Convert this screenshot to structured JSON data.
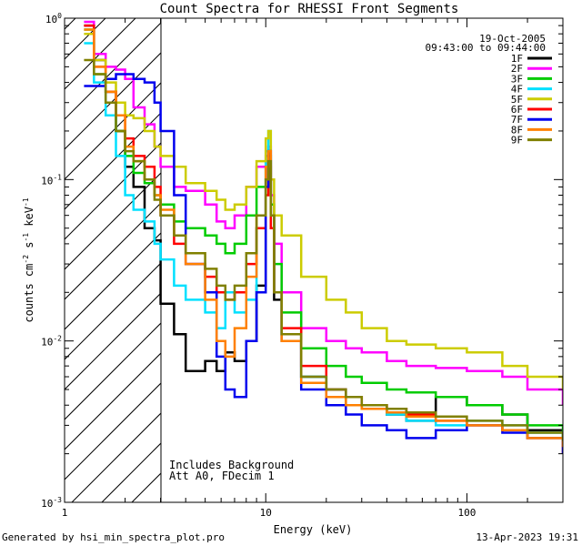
{
  "chart_data": {
    "type": "line",
    "title": "Count Spectra for RHESSI Front Segments",
    "xlabel": "Energy (keV)",
    "ylabel": "counts cm^-2 s^-1 keV^-1",
    "ylabel_parts": {
      "a": "counts cm",
      "a_sup": "-2",
      "b": " s",
      "b_sup": "-1",
      "c": " keV",
      "c_sup": "-1"
    },
    "xscale": "log",
    "yscale": "log",
    "xlim": [
      1.0,
      300.0
    ],
    "ylim": [
      0.001,
      1.0
    ],
    "xtick_labels": [
      {
        "v": 1,
        "label": "1"
      },
      {
        "v": 10,
        "label": "10"
      },
      {
        "v": 100,
        "label": "100"
      }
    ],
    "ytick_labels": [
      {
        "v": 1,
        "m": "10",
        "e": "0"
      },
      {
        "v": 0.1,
        "m": "10",
        "e": "-1"
      },
      {
        "v": 0.01,
        "m": "10",
        "e": "-2"
      },
      {
        "v": 0.001,
        "m": "10",
        "e": "-3"
      }
    ],
    "date_label": "19-Oct-2005",
    "time_label": "09:43:00 to 09:44:00",
    "annotations": [
      "Includes Background",
      "Att A0, FDecim 1"
    ],
    "shaded_region": {
      "x_max": 3.0,
      "pattern": "diagonal hatch"
    },
    "series": [
      {
        "name": "1F",
        "color": "#000000",
        "x": [
          1.25,
          1.4,
          1.6,
          1.8,
          2.0,
          2.2,
          2.5,
          2.8,
          3.0,
          3.5,
          4.0,
          5.0,
          5.7,
          6.3,
          7.0,
          8.0,
          9.0,
          10.0,
          10.3,
          10.6,
          11.0,
          12.0,
          15,
          20,
          25,
          30,
          40,
          50,
          70,
          100,
          150,
          200,
          300
        ],
        "y": [
          0.9,
          0.55,
          0.35,
          0.2,
          0.12,
          0.09,
          0.05,
          0.042,
          0.017,
          0.011,
          0.0065,
          0.0075,
          0.0065,
          0.0085,
          0.0075,
          0.01,
          0.022,
          0.1,
          0.13,
          0.06,
          0.018,
          0.011,
          0.006,
          0.005,
          0.004,
          0.0038,
          0.0035,
          0.0032,
          0.0045,
          0.004,
          0.0035,
          0.0028,
          0.0022
        ]
      },
      {
        "name": "2F",
        "color": "#ff00ff",
        "x": [
          1.25,
          1.4,
          1.6,
          1.8,
          2.0,
          2.2,
          2.5,
          2.8,
          3.0,
          3.5,
          4.0,
          5.0,
          5.7,
          6.3,
          7.0,
          8.0,
          9.0,
          10.0,
          10.3,
          10.6,
          11.0,
          12.0,
          15,
          20,
          25,
          30,
          40,
          50,
          70,
          100,
          150,
          200,
          300
        ],
        "y": [
          0.95,
          0.6,
          0.5,
          0.48,
          0.42,
          0.28,
          0.22,
          0.16,
          0.12,
          0.09,
          0.085,
          0.07,
          0.055,
          0.05,
          0.06,
          0.09,
          0.12,
          0.14,
          0.16,
          0.08,
          0.04,
          0.02,
          0.012,
          0.01,
          0.009,
          0.0085,
          0.0075,
          0.007,
          0.0068,
          0.0065,
          0.006,
          0.005,
          0.004
        ]
      },
      {
        "name": "3F",
        "color": "#00cc00",
        "x": [
          1.25,
          1.4,
          1.6,
          1.8,
          2.0,
          2.2,
          2.5,
          2.8,
          3.0,
          3.5,
          4.0,
          5.0,
          5.7,
          6.3,
          7.0,
          8.0,
          9.0,
          10.0,
          10.3,
          10.6,
          11.0,
          12.0,
          15,
          20,
          25,
          30,
          40,
          50,
          70,
          100,
          150,
          200,
          300
        ],
        "y": [
          0.85,
          0.45,
          0.3,
          0.2,
          0.14,
          0.11,
          0.095,
          0.08,
          0.07,
          0.055,
          0.05,
          0.045,
          0.04,
          0.035,
          0.04,
          0.06,
          0.09,
          0.12,
          0.14,
          0.07,
          0.03,
          0.015,
          0.009,
          0.007,
          0.006,
          0.0055,
          0.005,
          0.0048,
          0.0045,
          0.004,
          0.0035,
          0.003,
          0.0025
        ]
      },
      {
        "name": "4F",
        "color": "#00e0ff",
        "x": [
          1.25,
          1.4,
          1.6,
          1.8,
          2.0,
          2.2,
          2.5,
          2.8,
          3.0,
          3.5,
          4.0,
          5.0,
          5.7,
          6.3,
          7.0,
          8.0,
          9.0,
          10.0,
          10.3,
          10.6,
          11.0,
          12.0,
          15,
          20,
          25,
          30,
          40,
          50,
          70,
          100,
          150,
          200,
          300
        ],
        "y": [
          0.7,
          0.4,
          0.25,
          0.14,
          0.08,
          0.065,
          0.055,
          0.04,
          0.032,
          0.022,
          0.018,
          0.015,
          0.012,
          0.02,
          0.015,
          0.018,
          0.05,
          0.15,
          0.2,
          0.06,
          0.02,
          0.01,
          0.006,
          0.005,
          0.004,
          0.0038,
          0.0035,
          0.0032,
          0.003,
          0.0032,
          0.003,
          0.0027,
          0.0024
        ]
      },
      {
        "name": "5F",
        "color": "#cccc00",
        "x": [
          1.25,
          1.4,
          1.6,
          1.8,
          2.0,
          2.2,
          2.5,
          2.8,
          3.0,
          3.5,
          4.0,
          5.0,
          5.7,
          6.3,
          7.0,
          8.0,
          9.0,
          10.0,
          10.3,
          10.6,
          11.0,
          12.0,
          15,
          20,
          25,
          30,
          40,
          50,
          70,
          100,
          150,
          200,
          300
        ],
        "y": [
          0.8,
          0.55,
          0.4,
          0.3,
          0.25,
          0.24,
          0.2,
          0.16,
          0.14,
          0.12,
          0.095,
          0.085,
          0.075,
          0.065,
          0.07,
          0.09,
          0.13,
          0.18,
          0.2,
          0.1,
          0.06,
          0.045,
          0.025,
          0.018,
          0.015,
          0.012,
          0.01,
          0.0095,
          0.009,
          0.0085,
          0.007,
          0.006,
          0.005
        ]
      },
      {
        "name": "6F",
        "color": "#ff0000",
        "x": [
          1.25,
          1.4,
          1.6,
          1.8,
          2.0,
          2.2,
          2.5,
          2.8,
          3.0,
          3.5,
          4.0,
          5.0,
          5.7,
          6.3,
          7.0,
          8.0,
          9.0,
          10.0,
          10.3,
          10.6,
          11.0,
          12.0,
          15,
          20,
          25,
          30,
          40,
          50,
          70,
          100,
          150,
          200,
          300
        ],
        "y": [
          0.9,
          0.5,
          0.35,
          0.25,
          0.18,
          0.14,
          0.12,
          0.09,
          0.06,
          0.04,
          0.03,
          0.025,
          0.02,
          0.018,
          0.02,
          0.03,
          0.05,
          0.08,
          0.12,
          0.05,
          0.02,
          0.012,
          0.007,
          0.005,
          0.0045,
          0.004,
          0.0038,
          0.0035,
          0.0032,
          0.003,
          0.0028,
          0.0025,
          0.002
        ]
      },
      {
        "name": "7F",
        "color": "#0000ee",
        "x": [
          1.25,
          1.4,
          1.6,
          1.8,
          2.0,
          2.2,
          2.5,
          2.8,
          3.0,
          3.5,
          4.0,
          5.0,
          5.7,
          6.3,
          7.0,
          8.0,
          9.0,
          10.0,
          10.3,
          10.6,
          11.0,
          12.0,
          15,
          20,
          25,
          30,
          40,
          50,
          70,
          100,
          150,
          200,
          300
        ],
        "y": [
          0.38,
          0.38,
          0.42,
          0.45,
          0.45,
          0.42,
          0.4,
          0.3,
          0.2,
          0.08,
          0.03,
          0.02,
          0.008,
          0.005,
          0.0045,
          0.01,
          0.02,
          0.09,
          0.15,
          0.06,
          0.02,
          0.01,
          0.005,
          0.004,
          0.0035,
          0.003,
          0.0028,
          0.0025,
          0.0028,
          0.003,
          0.0027,
          0.0025,
          0.002
        ]
      },
      {
        "name": "8F",
        "color": "#ff8000",
        "x": [
          1.25,
          1.4,
          1.6,
          1.8,
          2.0,
          2.2,
          2.5,
          2.8,
          3.0,
          3.5,
          4.0,
          5.0,
          5.7,
          6.3,
          7.0,
          8.0,
          9.0,
          10.0,
          10.3,
          10.6,
          11.0,
          12.0,
          15,
          20,
          25,
          30,
          40,
          50,
          70,
          100,
          150,
          200,
          300
        ],
        "y": [
          0.85,
          0.5,
          0.35,
          0.25,
          0.16,
          0.13,
          0.1,
          0.08,
          0.065,
          0.045,
          0.03,
          0.018,
          0.01,
          0.008,
          0.012,
          0.025,
          0.06,
          0.12,
          0.15,
          0.06,
          0.02,
          0.01,
          0.0055,
          0.0045,
          0.004,
          0.0038,
          0.0036,
          0.0034,
          0.0032,
          0.003,
          0.0028,
          0.0025,
          0.0022
        ]
      },
      {
        "name": "9F",
        "color": "#808000",
        "x": [
          1.25,
          1.4,
          1.6,
          1.8,
          2.0,
          2.2,
          2.5,
          2.8,
          3.0,
          3.5,
          4.0,
          5.0,
          5.7,
          6.3,
          7.0,
          8.0,
          9.0,
          10.0,
          10.3,
          10.6,
          11.0,
          12.0,
          15,
          20,
          25,
          30,
          40,
          50,
          70,
          100,
          150,
          200,
          300
        ],
        "y": [
          0.55,
          0.45,
          0.3,
          0.2,
          0.15,
          0.13,
          0.1,
          0.075,
          0.06,
          0.045,
          0.035,
          0.028,
          0.022,
          0.018,
          0.022,
          0.035,
          0.06,
          0.1,
          0.13,
          0.06,
          0.02,
          0.011,
          0.006,
          0.005,
          0.0045,
          0.004,
          0.0038,
          0.0036,
          0.0034,
          0.0032,
          0.003,
          0.0027,
          0.0024
        ]
      }
    ]
  },
  "footer": {
    "generated_by": "Generated by hsi_min_spectra_plot.pro",
    "timestamp": "13-Apr-2023 19:31"
  }
}
